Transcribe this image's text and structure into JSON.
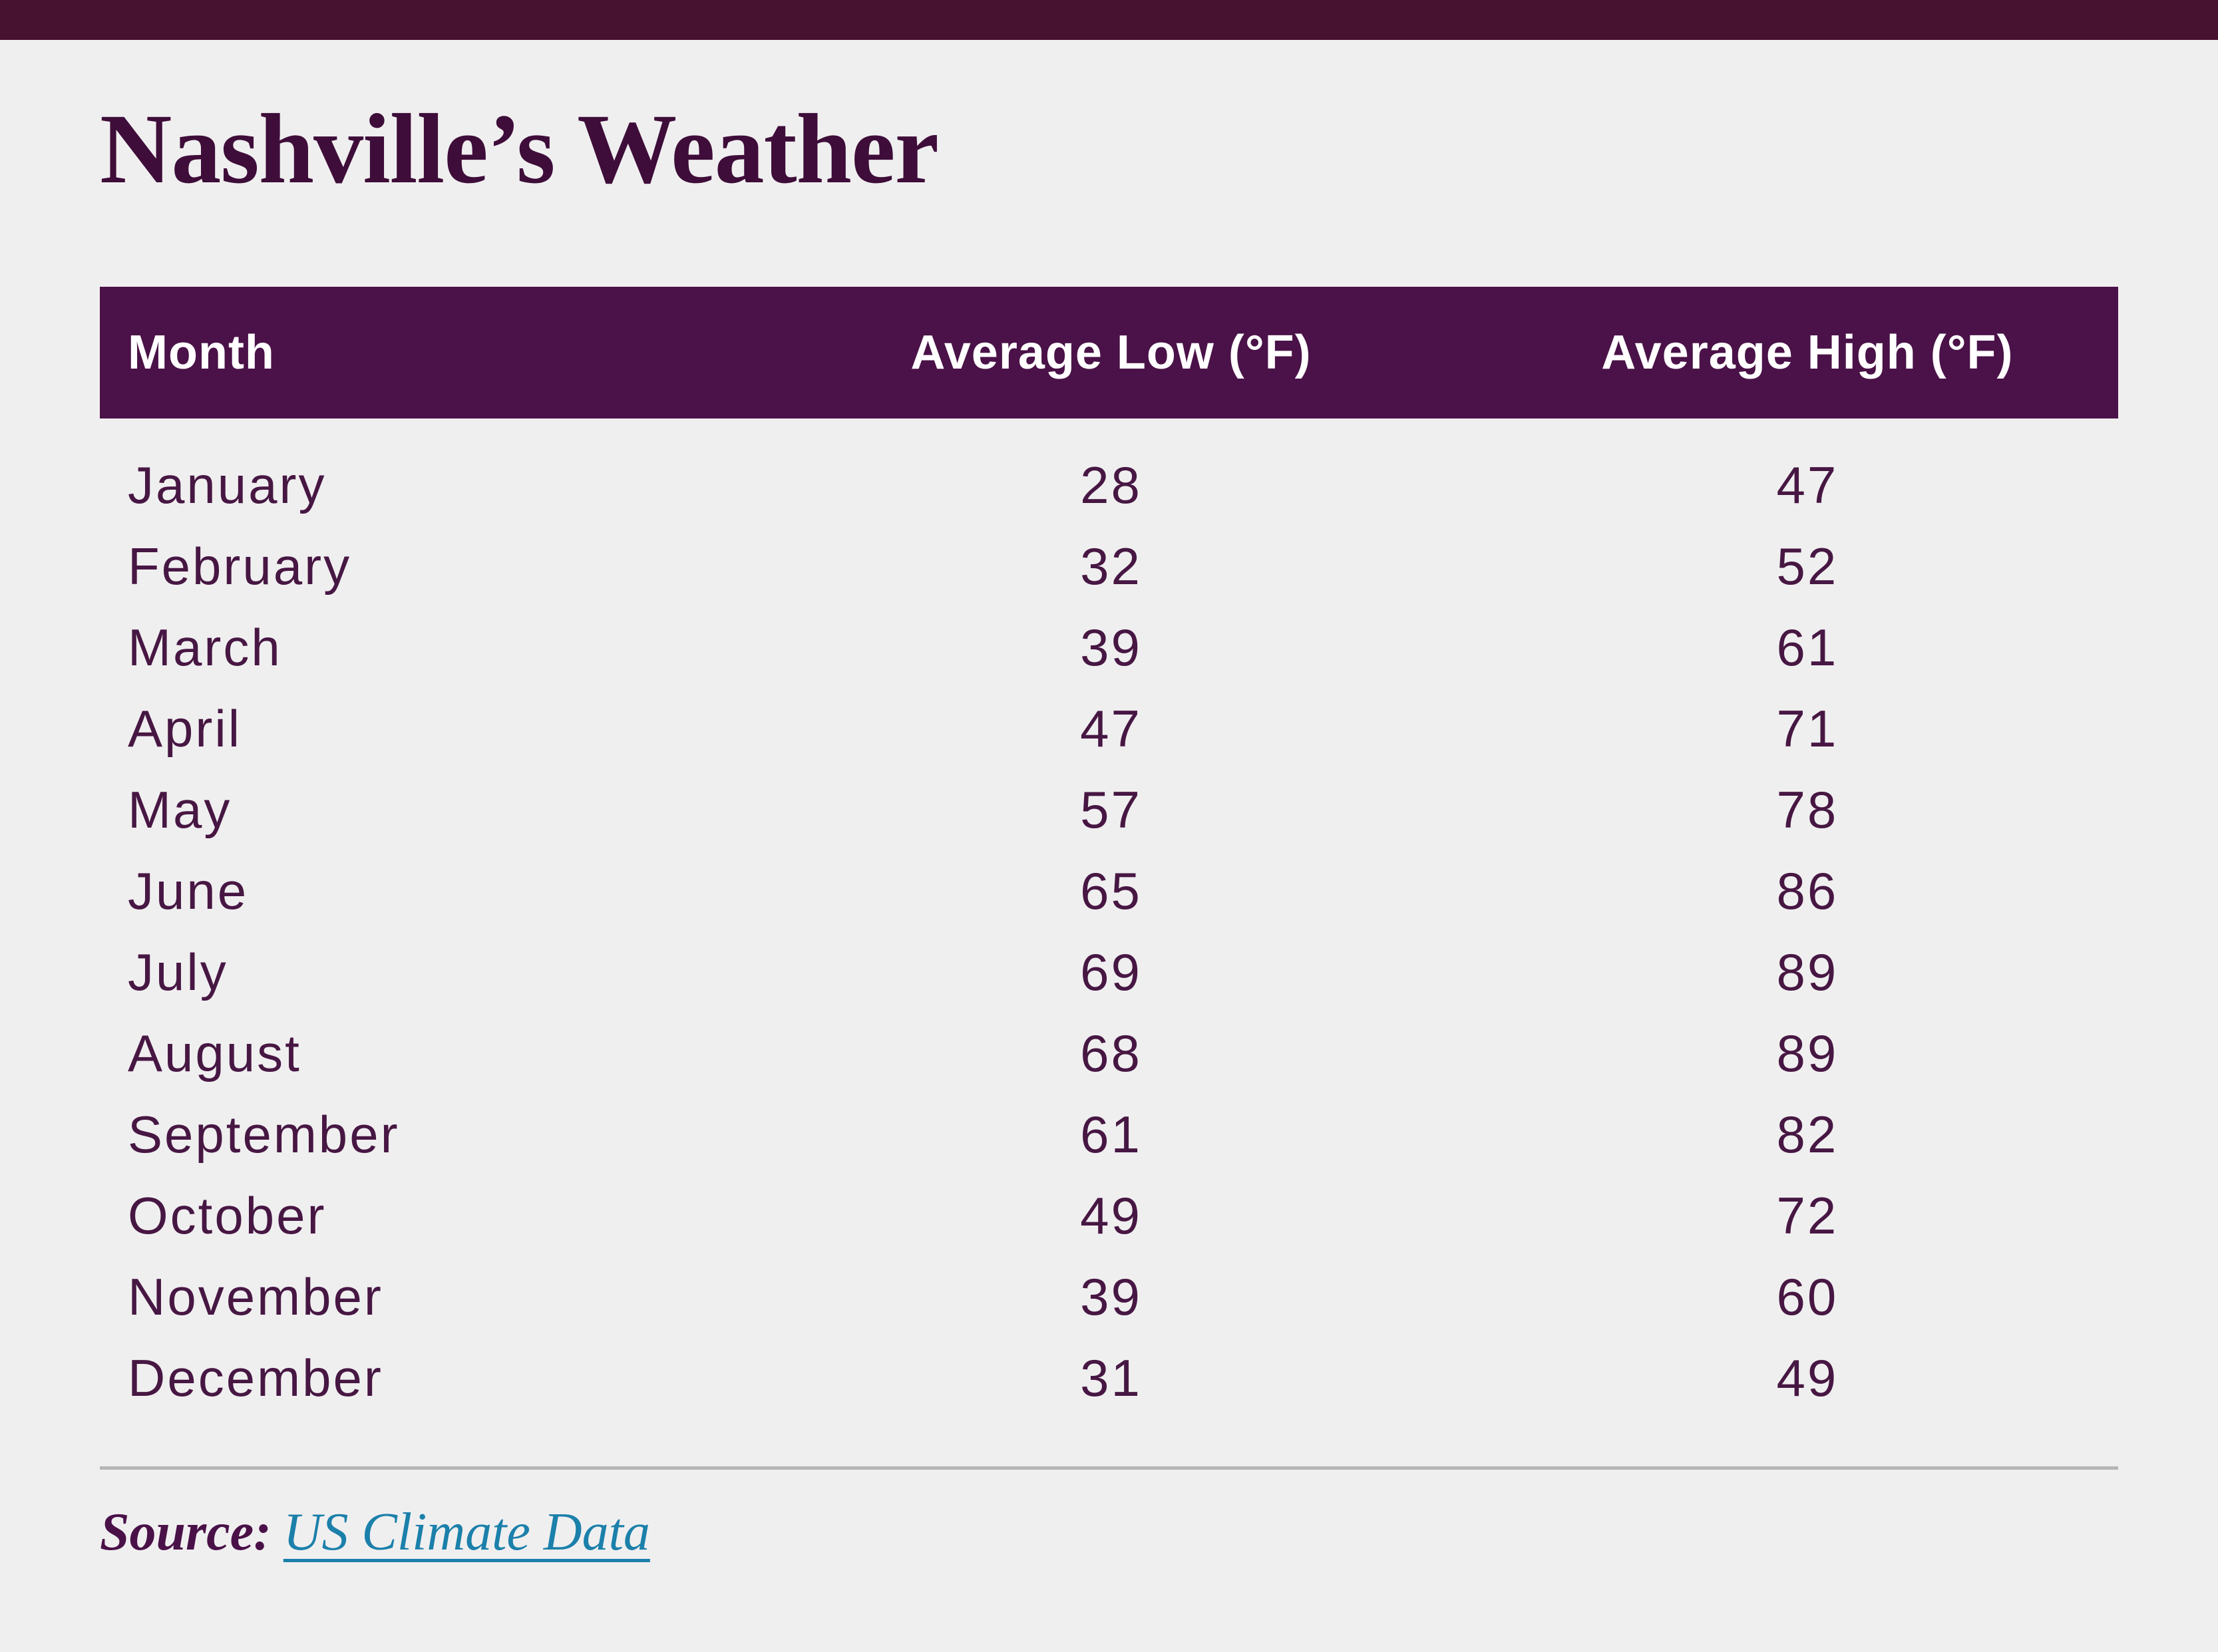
{
  "page": {
    "background_color": "#f0eff0",
    "accent_bar_color": "#471230"
  },
  "title": "Nashville’s Weather",
  "table": {
    "header": {
      "month": "Month",
      "low": "Average Low (°F)",
      "high": "Average High (°F)",
      "background_color": "#4a1248",
      "text_color": "#ffffff"
    },
    "rows": [
      {
        "month": "January",
        "low": "28",
        "high": "47"
      },
      {
        "month": "February",
        "low": "32",
        "high": "52"
      },
      {
        "month": "March",
        "low": "39",
        "high": "61"
      },
      {
        "month": "April",
        "low": "47",
        "high": "71"
      },
      {
        "month": "May",
        "low": "57",
        "high": "78"
      },
      {
        "month": "June",
        "low": "65",
        "high": "86"
      },
      {
        "month": "July",
        "low": "69",
        "high": "89"
      },
      {
        "month": "August",
        "low": "68",
        "high": "89"
      },
      {
        "month": "September",
        "low": "61",
        "high": "82"
      },
      {
        "month": "October",
        "low": "49",
        "high": "72"
      },
      {
        "month": "November",
        "low": "39",
        "high": "60"
      },
      {
        "month": "December",
        "low": "31",
        "high": "49"
      }
    ],
    "row_text_color": "#471743"
  },
  "source": {
    "label": "Source:",
    "link_text": "US Climate Data",
    "link_color": "#1b80aa",
    "divider_color": "#b5b5b5"
  }
}
